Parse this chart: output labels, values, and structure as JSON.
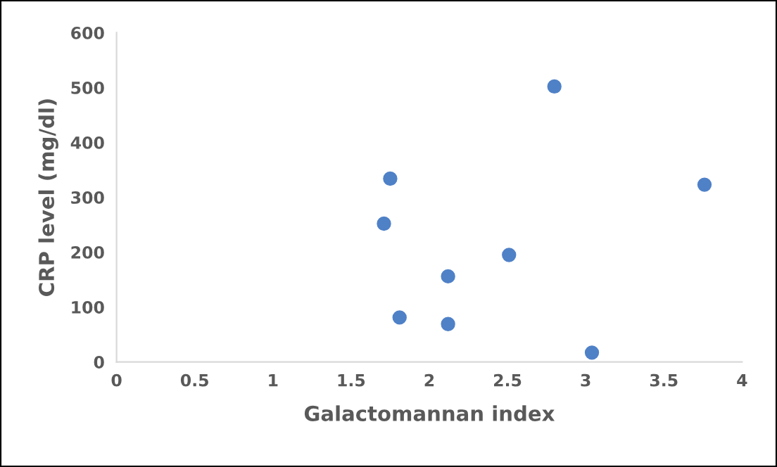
{
  "chart_data": {
    "type": "scatter",
    "xlabel": "Galactomannan index",
    "ylabel": "CRP level (mg/dl)",
    "x": [
      1.75,
      1.71,
      2.8,
      3.76,
      2.51,
      2.12,
      1.81,
      2.12,
      3.04
    ],
    "series": [
      {
        "color": "#4f81c7",
        "values": [
          334,
          252,
          502,
          323,
          195,
          156,
          81,
          69,
          17
        ]
      }
    ],
    "xlim": [
      0,
      4
    ],
    "xticks": [
      0,
      0.5,
      1,
      1.5,
      2,
      2.5,
      3,
      3.5,
      4
    ],
    "ylim": [
      0,
      600
    ],
    "yticks": [
      0,
      100,
      200,
      300,
      400,
      500,
      600
    ],
    "grid": false,
    "legend": false,
    "marker": "circle"
  }
}
